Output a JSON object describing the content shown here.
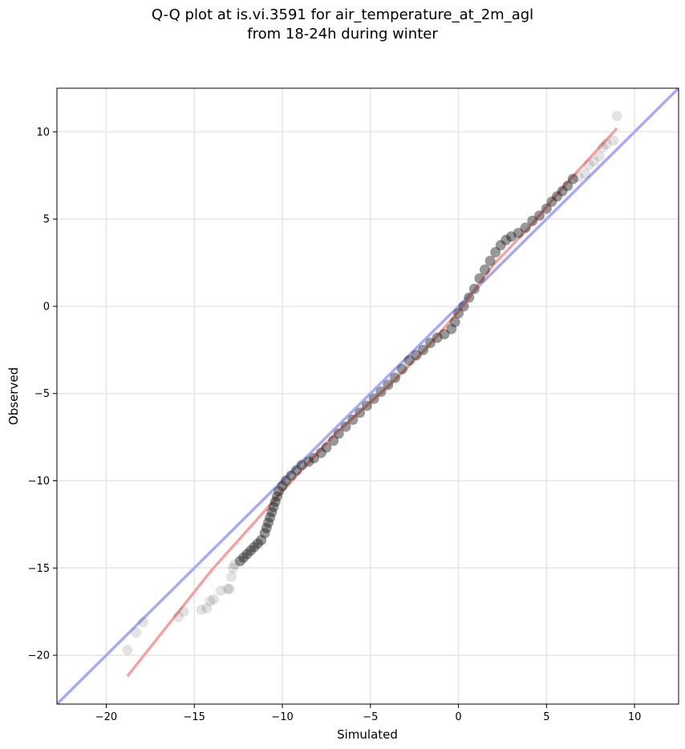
{
  "chart_data": {
    "type": "scatter",
    "title": "Q-Q plot at is.vi.3591 for air_temperature_at_2m_agl",
    "subtitle": "from 18-24h during winter",
    "xlabel": "Simulated",
    "ylabel": "Observed",
    "xlim": [
      -22.8,
      12.5
    ],
    "ylim": [
      -22.8,
      12.5
    ],
    "xticks": [
      -20,
      -15,
      -10,
      -5,
      0,
      5,
      10
    ],
    "yticks": [
      -20,
      -15,
      -10,
      -5,
      0,
      5,
      10
    ],
    "xtick_labels": [
      "−20",
      "−15",
      "−10",
      "−5",
      "0",
      "5",
      "10"
    ],
    "ytick_labels": [
      "−20",
      "−15",
      "−10",
      "−5",
      "0",
      "5",
      "10"
    ],
    "grid": true,
    "reference_lines": [
      {
        "kind": "identity",
        "color": "#a8aaf4",
        "x": [
          -22.8,
          12.5
        ],
        "y": [
          -22.8,
          12.5
        ]
      },
      {
        "kind": "fit",
        "color": "#f4a3a3",
        "x": [
          -18.8,
          -14,
          -10,
          -7,
          -4,
          -2,
          0,
          2,
          4,
          6,
          9.0
        ],
        "y": [
          -21.2,
          -15.1,
          -10.6,
          -7.3,
          -4.6,
          -2.6,
          -0.3,
          2.4,
          4.5,
          6.9,
          10.2
        ]
      }
    ],
    "series": [
      {
        "marker_color": "#1a1a1a",
        "points": [
          [
            -18.8,
            -19.7
          ],
          [
            -18.3,
            -18.7
          ],
          [
            -17.9,
            -18.1
          ],
          [
            -15.9,
            -17.8
          ],
          [
            -15.6,
            -17.5
          ],
          [
            -14.6,
            -17.4
          ],
          [
            -14.3,
            -17.3
          ],
          [
            -14.1,
            -16.9
          ],
          [
            -13.9,
            -16.8
          ],
          [
            -13.5,
            -16.3
          ],
          [
            -13.1,
            -16.2
          ],
          [
            -13.0,
            -16.2
          ],
          [
            -12.9,
            -15.5
          ],
          [
            -12.8,
            -15.0
          ],
          [
            -12.7,
            -14.8
          ],
          [
            -12.4,
            -14.6
          ],
          [
            -12.2,
            -14.4
          ],
          [
            -12.0,
            -14.2
          ],
          [
            -11.8,
            -14.0
          ],
          [
            -11.6,
            -13.8
          ],
          [
            -11.4,
            -13.6
          ],
          [
            -11.2,
            -13.4
          ],
          [
            -11.0,
            -13.0
          ],
          [
            -10.9,
            -12.7
          ],
          [
            -10.8,
            -12.4
          ],
          [
            -10.7,
            -12.1
          ],
          [
            -10.6,
            -11.8
          ],
          [
            -10.5,
            -11.5
          ],
          [
            -10.4,
            -11.2
          ],
          [
            -10.3,
            -10.9
          ],
          [
            -10.2,
            -10.6
          ],
          [
            -10.0,
            -10.3
          ],
          [
            -9.8,
            -10.0
          ],
          [
            -9.5,
            -9.7
          ],
          [
            -9.2,
            -9.4
          ],
          [
            -8.9,
            -9.1
          ],
          [
            -8.5,
            -8.9
          ],
          [
            -8.2,
            -8.7
          ],
          [
            -7.8,
            -8.4
          ],
          [
            -7.5,
            -8.1
          ],
          [
            -7.1,
            -7.7
          ],
          [
            -6.8,
            -7.3
          ],
          [
            -6.4,
            -6.9
          ],
          [
            -6.0,
            -6.5
          ],
          [
            -5.6,
            -6.1
          ],
          [
            -5.2,
            -5.7
          ],
          [
            -4.8,
            -5.3
          ],
          [
            -4.4,
            -4.9
          ],
          [
            -4.0,
            -4.5
          ],
          [
            -3.6,
            -4.1
          ],
          [
            -3.2,
            -3.6
          ],
          [
            -2.8,
            -3.1
          ],
          [
            -2.4,
            -2.8
          ],
          [
            -2.0,
            -2.5
          ],
          [
            -1.6,
            -2.1
          ],
          [
            -1.2,
            -1.8
          ],
          [
            -0.8,
            -1.6
          ],
          [
            -0.4,
            -1.3
          ],
          [
            -0.2,
            -0.9
          ],
          [
            0.0,
            -0.4
          ],
          [
            0.3,
            0.0
          ],
          [
            0.6,
            0.5
          ],
          [
            0.9,
            1.0
          ],
          [
            1.2,
            1.6
          ],
          [
            1.5,
            2.1
          ],
          [
            1.8,
            2.6
          ],
          [
            2.1,
            3.1
          ],
          [
            2.4,
            3.5
          ],
          [
            2.7,
            3.8
          ],
          [
            3.0,
            4.0
          ],
          [
            3.4,
            4.2
          ],
          [
            3.8,
            4.5
          ],
          [
            4.2,
            4.9
          ],
          [
            4.6,
            5.2
          ],
          [
            5.0,
            5.6
          ],
          [
            5.3,
            6.0
          ],
          [
            5.6,
            6.3
          ],
          [
            5.9,
            6.6
          ],
          [
            6.2,
            6.9
          ],
          [
            6.5,
            7.3
          ],
          [
            6.8,
            7.4
          ],
          [
            7.2,
            7.6
          ],
          [
            7.4,
            8.1
          ],
          [
            7.7,
            8.3
          ],
          [
            8.0,
            8.6
          ],
          [
            8.2,
            9.1
          ],
          [
            8.4,
            9.3
          ],
          [
            8.8,
            9.5
          ],
          [
            9.0,
            10.9
          ]
        ]
      }
    ]
  }
}
